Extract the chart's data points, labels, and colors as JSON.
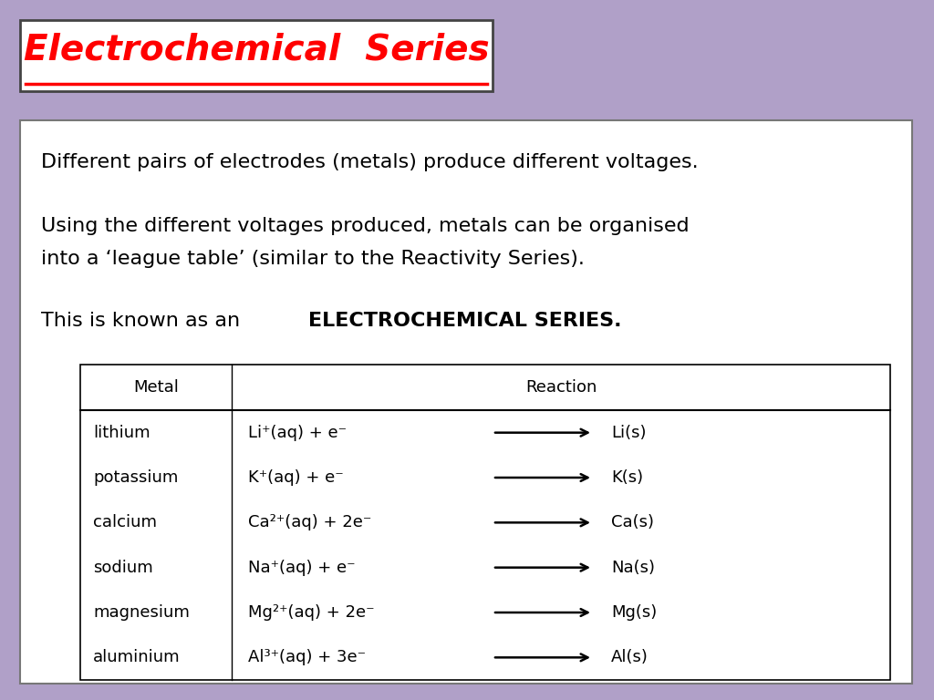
{
  "bg_color": "#b0a0c8",
  "title_text": "Electrochemical  Series",
  "title_color": "#ff0000",
  "title_bg": "#ffffff",
  "title_border": "#444444",
  "content_bg": "#ffffff",
  "content_border": "#777777",
  "paragraph1": "Different pairs of electrodes (metals) produce different voltages.",
  "paragraph2a": "Using the different voltages produced, metals can be organised",
  "paragraph2b": "into a ‘league table’ (similar to the Reactivity Series).",
  "paragraph3_normal": "This is known as an ",
  "paragraph3_bold": "ELECTROCHEMICAL SERIES",
  "paragraph3_end": ".",
  "table_header_metal": "Metal",
  "table_header_reaction": "Reaction",
  "metals": [
    "lithium",
    "potassium",
    "calcium",
    "sodium",
    "magnesium",
    "aluminium"
  ],
  "reactions_left": [
    "Li⁺(aq) + e⁻",
    "K⁺(aq) + e⁻",
    "Ca²⁺(aq) + 2e⁻",
    "Na⁺(aq) + e⁻",
    "Mg²⁺(aq) + 2e⁻",
    "Al³⁺(aq) + 3e⁻"
  ],
  "reactions_right": [
    "Li(s)",
    "K(s)",
    "Ca(s)",
    "Na(s)",
    "Mg(s)",
    "Al(s)"
  ],
  "font_size_title": 28,
  "font_size_para": 16,
  "font_size_table": 13
}
